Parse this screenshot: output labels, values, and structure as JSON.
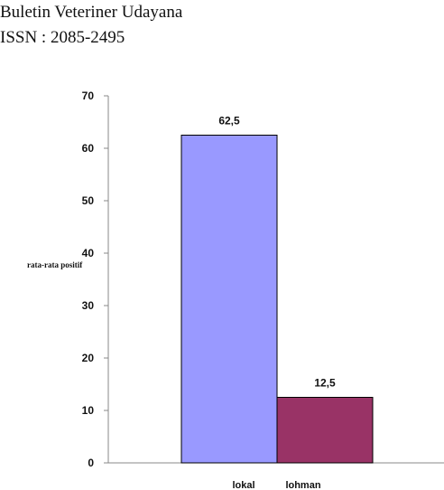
{
  "header": {
    "journal_title": "Buletin Veteriner Udayana",
    "issn": "ISSN : 2085-2495"
  },
  "chart_data": {
    "type": "bar",
    "categories": [
      "lokal",
      "lohman"
    ],
    "values": [
      62.5,
      12.5
    ],
    "data_labels": [
      "62,5",
      "12,5"
    ],
    "colors": [
      "#9999ff",
      "#993366"
    ],
    "ylabel": "rata-rata positif",
    "xlabel": "",
    "ylim": [
      0,
      70
    ],
    "yticks": [
      0,
      10,
      20,
      30,
      40,
      50,
      60,
      70
    ],
    "grid": false,
    "legend": "none"
  }
}
